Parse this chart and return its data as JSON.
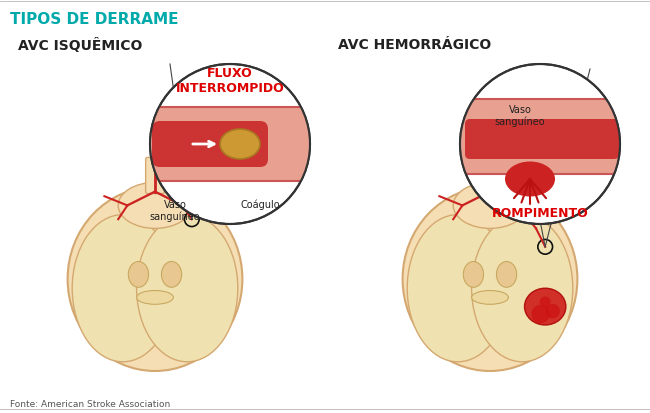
{
  "title": "TIPOS DE DERRAME",
  "title_color": "#00AAAA",
  "title_fontsize": 11,
  "left_heading": "AVC ISQUÊMICO",
  "right_heading": "AVC HEMORRÁGICO",
  "heading_fontsize": 10,
  "left_label1": "Vaso\nsanguíneo",
  "left_label2": "Coágulo",
  "left_highlight": "FLUXO\nINTERROMPIDO",
  "right_label1": "ROMPIMENTO",
  "right_label2": "Vaso\nsanguíneo",
  "footer": "Fonte: American Stroke Association",
  "bg_color": "#FFFFFF",
  "brain_fill": "#F5DEB3",
  "brain_inner": "#F0E6C8",
  "vessel_color": "#CC2222",
  "highlight_color": "#DD0000",
  "circle_bg": "#FFFFFF"
}
